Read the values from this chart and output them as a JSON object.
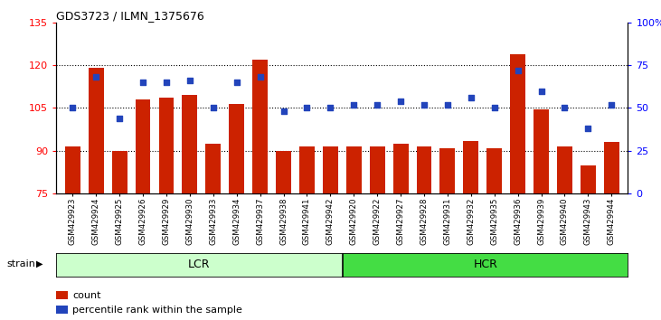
{
  "title": "GDS3723 / ILMN_1375676",
  "categories": [
    "GSM429923",
    "GSM429924",
    "GSM429925",
    "GSM429926",
    "GSM429929",
    "GSM429930",
    "GSM429933",
    "GSM429934",
    "GSM429937",
    "GSM429938",
    "GSM429941",
    "GSM429942",
    "GSM429920",
    "GSM429922",
    "GSM429927",
    "GSM429928",
    "GSM429931",
    "GSM429932",
    "GSM429935",
    "GSM429936",
    "GSM429939",
    "GSM429940",
    "GSM429943",
    "GSM429944"
  ],
  "bar_values": [
    91.5,
    119.0,
    90.0,
    108.0,
    108.5,
    109.5,
    92.5,
    106.5,
    122.0,
    90.0,
    91.5,
    91.5,
    91.5,
    91.5,
    92.5,
    91.5,
    91.0,
    93.5,
    91.0,
    124.0,
    104.5,
    91.5,
    85.0,
    93.0
  ],
  "dot_values": [
    50,
    68,
    44,
    65,
    65,
    66,
    50,
    65,
    68,
    48,
    50,
    50,
    52,
    52,
    54,
    52,
    52,
    56,
    50,
    72,
    60,
    50,
    38,
    52
  ],
  "lcr_count": 12,
  "hcr_count": 12,
  "ylim_left": [
    75,
    135
  ],
  "ylim_right": [
    0,
    100
  ],
  "yticks_left": [
    75,
    90,
    105,
    120,
    135
  ],
  "yticks_right": [
    0,
    25,
    50,
    75,
    100
  ],
  "ytick_labels_right": [
    "0",
    "25",
    "50",
    "75",
    "100%"
  ],
  "bar_color": "#cc2200",
  "dot_color": "#2244bb",
  "bar_bottom": 75,
  "lcr_color": "#ccffcc",
  "hcr_color": "#44dd44",
  "group_label_lcr": "LCR",
  "group_label_hcr": "HCR",
  "strain_label": "strain",
  "legend_bar": "count",
  "legend_dot": "percentile rank within the sample",
  "bg_color": "#ffffff"
}
